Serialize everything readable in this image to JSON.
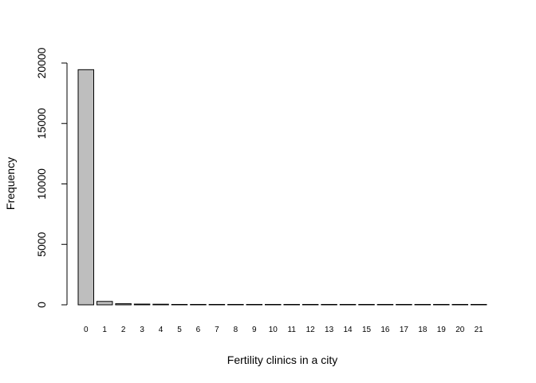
{
  "chart_data": {
    "type": "bar",
    "title": "",
    "xlabel": "Fertility clinics in a city",
    "ylabel": "Frequency",
    "categories": [
      "0",
      "1",
      "2",
      "3",
      "4",
      "5",
      "6",
      "7",
      "8",
      "9",
      "10",
      "11",
      "12",
      "13",
      "14",
      "15",
      "16",
      "17",
      "18",
      "19",
      "20",
      "21"
    ],
    "values": [
      19450,
      280,
      90,
      60,
      50,
      20,
      12,
      8,
      6,
      5,
      4,
      3,
      3,
      2,
      2,
      2,
      1,
      1,
      1,
      1,
      1,
      1
    ],
    "ylim": [
      0,
      20000
    ],
    "yticks": [
      0,
      5000,
      10000,
      15000,
      20000
    ],
    "ytick_labels": [
      "0",
      "5000",
      "10000",
      "15000",
      "20000"
    ],
    "grid": false,
    "bar_fill": "#bebebe",
    "bar_stroke": "#000000"
  }
}
